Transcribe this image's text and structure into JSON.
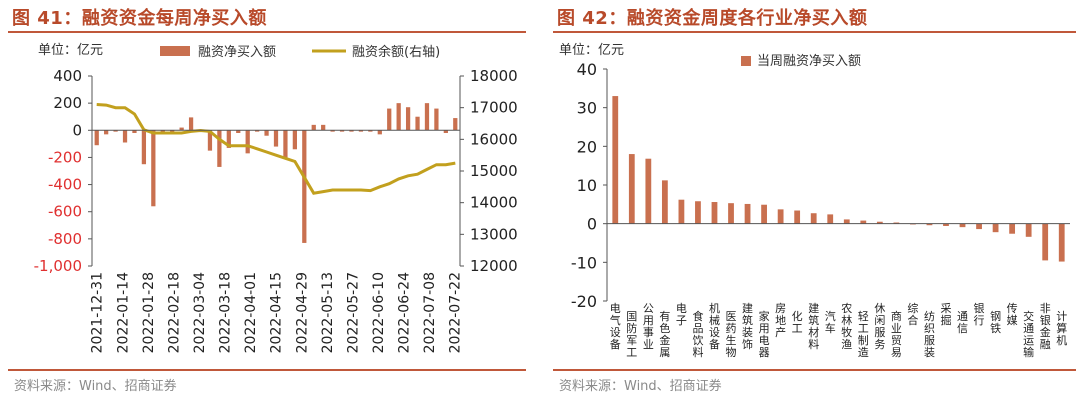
{
  "panel1": {
    "title": "图 41：融资资金每周净买入额",
    "unit": "单位：亿元",
    "legend_bar": "融资净买入额",
    "legend_line": "融资余额(右轴)",
    "source": "资料来源：Wind、招商证券"
  },
  "panel2": {
    "title": "图 42：融资资金周度各行业净买入额",
    "unit": "单位：亿元",
    "legend_bar": "当周融资净买入额",
    "source": "资料来源：Wind、招商证券"
  },
  "colors": {
    "bar": "#c9704f",
    "line": "#c2a01e",
    "accent": "#b84a2a",
    "left_axis_text": "#e03030"
  },
  "chart_data": [
    {
      "type": "bar",
      "series": [
        {
          "name": "融资净买入额",
          "axis": "left",
          "values": [
            -110,
            -30,
            -10,
            -90,
            -20,
            -250,
            -560,
            -30,
            -20,
            20,
            95,
            -10,
            -150,
            -270,
            -130,
            -20,
            -170,
            -10,
            -40,
            -120,
            -200,
            -140,
            -830,
            40,
            40,
            -10,
            -10,
            -10,
            -10,
            -10,
            -30,
            160,
            200,
            170,
            100,
            200,
            160,
            -20,
            90
          ]
        },
        {
          "name": "融资余额(右轴)",
          "type": "line",
          "axis": "right",
          "values": [
            17100,
            17080,
            17000,
            17000,
            16800,
            16300,
            16200,
            16200,
            16200,
            16200,
            16250,
            16280,
            16250,
            16000,
            15800,
            15800,
            15800,
            15700,
            15600,
            15500,
            15400,
            15300,
            14800,
            14300,
            14350,
            14400,
            14400,
            14400,
            14400,
            14380,
            14500,
            14600,
            14750,
            14850,
            14900,
            15050,
            15200,
            15200,
            15250
          ]
        }
      ],
      "x_tick_labels": [
        "2021-12-31",
        "2022-01-14",
        "2022-01-28",
        "2022-02-18",
        "2022-03-04",
        "2022-03-18",
        "2022-04-01",
        "2022-04-15",
        "2022-04-29",
        "2022-05-13",
        "2022-05-27",
        "2022-06-10",
        "2022-06-24",
        "2022-07-08",
        "2022-07-22"
      ],
      "ylim_left": [
        -1000,
        400
      ],
      "yticks_left": [
        "400",
        "200",
        "0",
        "-200",
        "-400",
        "-600",
        "-800",
        "-1,000"
      ],
      "ylim_right": [
        12000,
        18000
      ],
      "yticks_right": [
        "18000",
        "17000",
        "16000",
        "15000",
        "14000",
        "13000",
        "12000"
      ],
      "legend": "top"
    },
    {
      "type": "bar",
      "categories": [
        "电气设备",
        "国防军工",
        "公用事业",
        "有色金属",
        "电子",
        "食品饮料",
        "机械设备",
        "医药生物",
        "建筑装饰",
        "家用电器",
        "房地产",
        "化工",
        "建筑材料",
        "汽车",
        "农林牧渔",
        "轻工制造",
        "休闲服务",
        "商业贸易",
        "综合",
        "纺织服装",
        "采掘",
        "通信",
        "银行",
        "钢铁",
        "传媒",
        "交通运输",
        "非银金融",
        "计算机"
      ],
      "series": [
        {
          "name": "当周融资净买入额",
          "values": [
            33,
            18,
            16.8,
            11.2,
            6.2,
            5.8,
            5.6,
            5.3,
            5.1,
            4.9,
            3.7,
            3.4,
            2.7,
            2.4,
            1.1,
            0.8,
            0.5,
            0.3,
            -0.2,
            -0.4,
            -0.6,
            -0.9,
            -1.4,
            -2.2,
            -2.6,
            -3.4,
            -9.5,
            -9.8
          ]
        }
      ],
      "ylim": [
        -20,
        40
      ],
      "yticks": [
        "40",
        "30",
        "20",
        "10",
        "0",
        "-10",
        "-20"
      ],
      "legend": "top"
    }
  ]
}
